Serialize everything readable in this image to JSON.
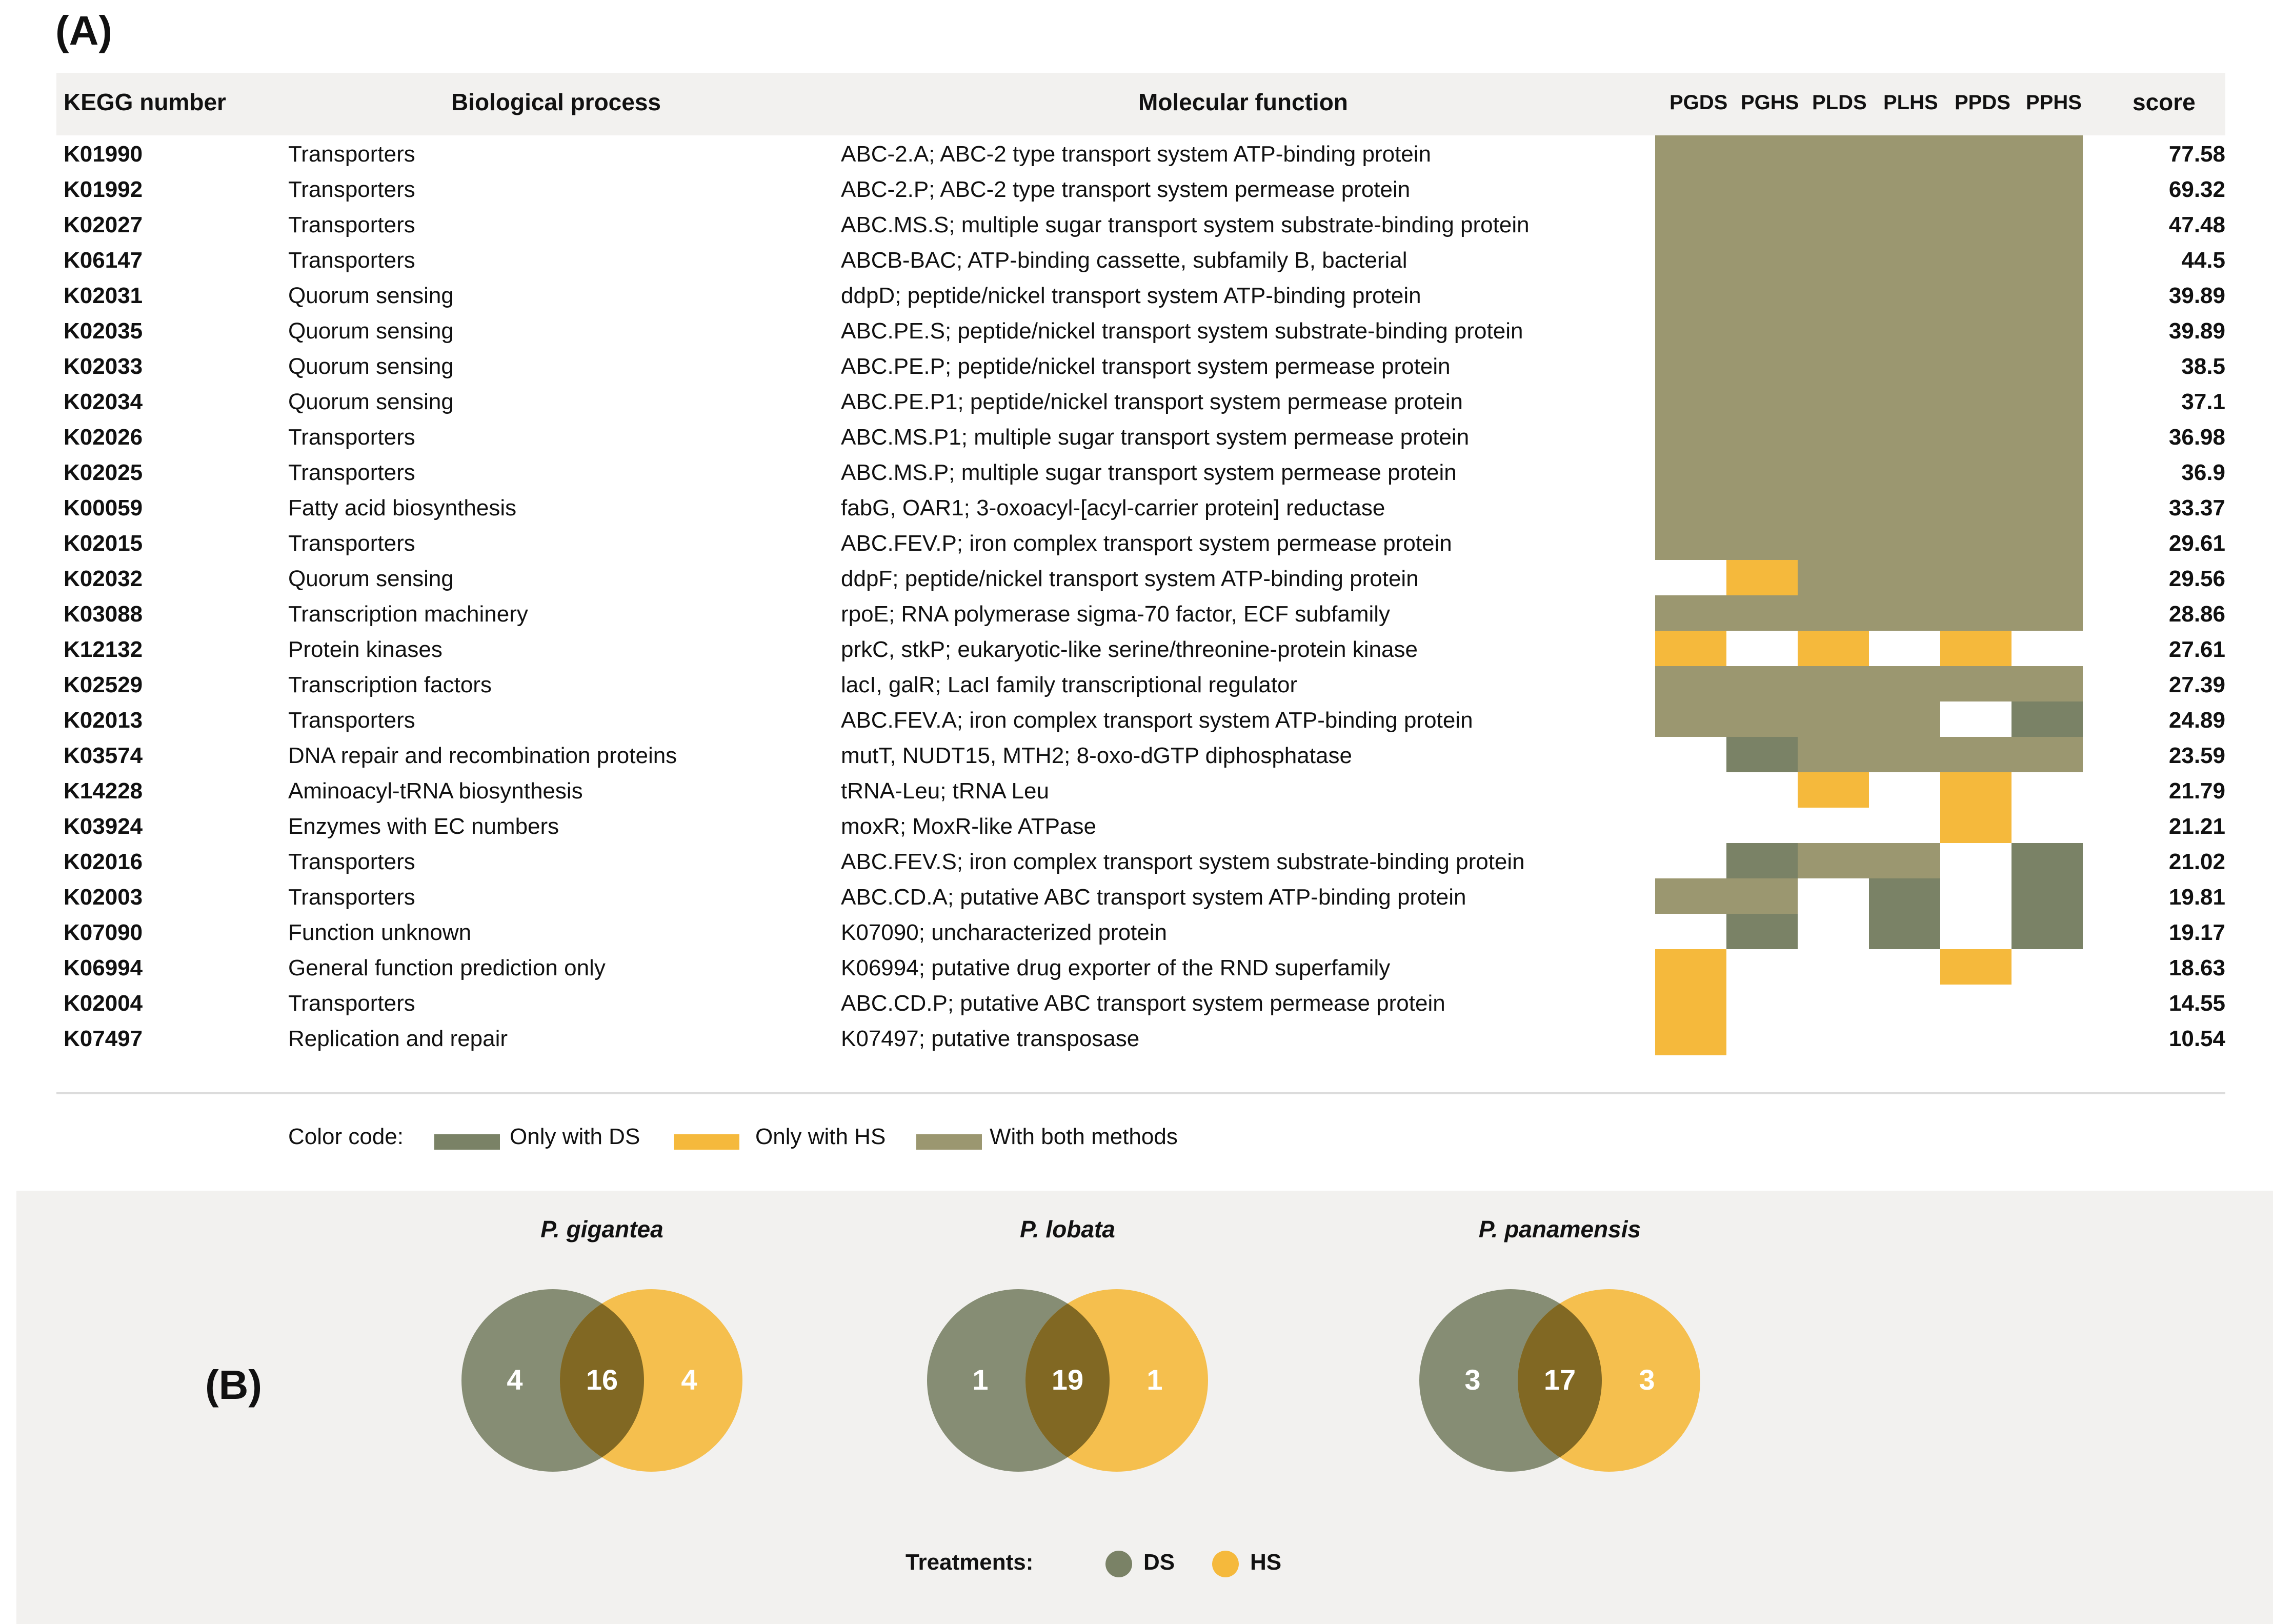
{
  "panel_labels": {
    "a": "(A)",
    "b": "(B)"
  },
  "colors": {
    "only_ds": "#7a8266",
    "only_hs": "#f5b93c",
    "both": "#9b9770",
    "none": "#ffffff"
  },
  "table": {
    "headers": {
      "kegg": "KEGG number",
      "bio": "Biological process",
      "mol": "Molecular function",
      "samples": [
        "PGDS",
        "PGHS",
        "PLDS",
        "PLHS",
        "PPDS",
        "PPHS"
      ],
      "score": "score"
    },
    "rows": [
      {
        "kegg": "K01990",
        "bio": "Transporters",
        "mol": "ABC-2.A; ABC-2 type transport system ATP-binding protein",
        "score": "77.58",
        "cells": [
          "both",
          "both",
          "both",
          "both",
          "both",
          "both"
        ]
      },
      {
        "kegg": "K01992",
        "bio": "Transporters",
        "mol": "ABC-2.P; ABC-2 type transport system permease protein",
        "score": "69.32",
        "cells": [
          "both",
          "both",
          "both",
          "both",
          "both",
          "both"
        ]
      },
      {
        "kegg": "K02027",
        "bio": "Transporters",
        "mol": "ABC.MS.S; multiple sugar transport system substrate-binding protein",
        "score": "47.48",
        "cells": [
          "both",
          "both",
          "both",
          "both",
          "both",
          "both"
        ]
      },
      {
        "kegg": "K06147",
        "bio": "Transporters",
        "mol": "ABCB-BAC; ATP-binding cassette, subfamily B, bacterial",
        "score": "44.5",
        "cells": [
          "both",
          "both",
          "both",
          "both",
          "both",
          "both"
        ]
      },
      {
        "kegg": "K02031",
        "bio": "Quorum sensing",
        "mol": "ddpD; peptide/nickel transport system ATP-binding protein",
        "score": "39.89",
        "cells": [
          "both",
          "both",
          "both",
          "both",
          "both",
          "both"
        ]
      },
      {
        "kegg": "K02035",
        "bio": "Quorum sensing",
        "mol": "ABC.PE.S; peptide/nickel transport system substrate-binding protein",
        "score": "39.89",
        "cells": [
          "both",
          "both",
          "both",
          "both",
          "both",
          "both"
        ]
      },
      {
        "kegg": "K02033",
        "bio": "Quorum sensing",
        "mol": "ABC.PE.P; peptide/nickel transport system permease protein",
        "score": "38.5",
        "cells": [
          "both",
          "both",
          "both",
          "both",
          "both",
          "both"
        ]
      },
      {
        "kegg": "K02034",
        "bio": "Quorum sensing",
        "mol": "ABC.PE.P1; peptide/nickel transport system permease protein",
        "score": "37.1",
        "cells": [
          "both",
          "both",
          "both",
          "both",
          "both",
          "both"
        ]
      },
      {
        "kegg": "K02026",
        "bio": "Transporters",
        "mol": "ABC.MS.P1; multiple sugar transport system permease protein",
        "score": "36.98",
        "cells": [
          "both",
          "both",
          "both",
          "both",
          "both",
          "both"
        ]
      },
      {
        "kegg": "K02025",
        "bio": "Transporters",
        "mol": "ABC.MS.P; multiple sugar transport system permease protein",
        "score": "36.9",
        "cells": [
          "both",
          "both",
          "both",
          "both",
          "both",
          "both"
        ]
      },
      {
        "kegg": "K00059",
        "bio": "Fatty acid biosynthesis",
        "mol": "fabG, OAR1; 3-oxoacyl-[acyl-carrier protein] reductase",
        "score": "33.37",
        "cells": [
          "both",
          "both",
          "both",
          "both",
          "both",
          "both"
        ]
      },
      {
        "kegg": "K02015",
        "bio": "Transporters",
        "mol": "ABC.FEV.P; iron complex transport system permease protein",
        "score": "29.61",
        "cells": [
          "both",
          "both",
          "both",
          "both",
          "both",
          "both"
        ]
      },
      {
        "kegg": "K02032",
        "bio": "Quorum sensing",
        "mol": "ddpF; peptide/nickel transport system ATP-binding protein",
        "score": "29.56",
        "cells": [
          "none",
          "hs",
          "both",
          "both",
          "both",
          "both"
        ]
      },
      {
        "kegg": "K03088",
        "bio": "Transcription machinery",
        "mol": "rpoE; RNA polymerase sigma-70 factor, ECF subfamily",
        "score": "28.86",
        "cells": [
          "both",
          "both",
          "both",
          "both",
          "both",
          "both"
        ]
      },
      {
        "kegg": "K12132",
        "bio": "Protein kinases",
        "mol": "prkC, stkP; eukaryotic-like serine/threonine-protein kinase",
        "score": "27.61",
        "cells": [
          "hs",
          "none",
          "hs",
          "none",
          "hs",
          "none"
        ]
      },
      {
        "kegg": "K02529",
        "bio": "Transcription factors",
        "mol": "lacI, galR; LacI family transcriptional regulator",
        "score": "27.39",
        "cells": [
          "both",
          "both",
          "both",
          "both",
          "both",
          "both"
        ]
      },
      {
        "kegg": "K02013",
        "bio": "Transporters",
        "mol": "ABC.FEV.A; iron complex transport system ATP-binding protein",
        "score": "24.89",
        "cells": [
          "both",
          "both",
          "both",
          "both",
          "none",
          "ds"
        ]
      },
      {
        "kegg": "K03574",
        "bio": "DNA repair and recombination proteins",
        "mol": "mutT, NUDT15, MTH2; 8-oxo-dGTP diphosphatase",
        "score": "23.59",
        "cells": [
          "none",
          "ds",
          "both",
          "both",
          "both",
          "both"
        ]
      },
      {
        "kegg": "K14228",
        "bio": "Aminoacyl-tRNA biosynthesis",
        "mol": "tRNA-Leu; tRNA Leu",
        "score": "21.79",
        "cells": [
          "none",
          "none",
          "hs",
          "none",
          "hs",
          "none"
        ]
      },
      {
        "kegg": "K03924",
        "bio": "Enzymes with EC numbers",
        "mol": "moxR; MoxR-like ATPase",
        "score": "21.21",
        "cells": [
          "none",
          "none",
          "none",
          "none",
          "hs",
          "none"
        ]
      },
      {
        "kegg": "K02016",
        "bio": "Transporters",
        "mol": "ABC.FEV.S; iron complex transport system substrate-binding protein",
        "score": "21.02",
        "cells": [
          "none",
          "ds",
          "both",
          "both",
          "none",
          "ds"
        ]
      },
      {
        "kegg": "K02003",
        "bio": "Transporters",
        "mol": "ABC.CD.A; putative ABC transport system ATP-binding protein",
        "score": "19.81",
        "cells": [
          "both",
          "both",
          "none",
          "ds",
          "none",
          "ds"
        ]
      },
      {
        "kegg": "K07090",
        "bio": "Function unknown",
        "mol": "K07090; uncharacterized protein",
        "score": "19.17",
        "cells": [
          "none",
          "ds",
          "none",
          "ds",
          "none",
          "ds"
        ]
      },
      {
        "kegg": "K06994",
        "bio": "General function prediction only",
        "mol": "K06994; putative drug exporter of the RND superfamily",
        "score": "18.63",
        "cells": [
          "hs",
          "none",
          "none",
          "none",
          "hs",
          "none"
        ]
      },
      {
        "kegg": "K02004",
        "bio": "Transporters",
        "mol": "ABC.CD.P; putative ABC transport system permease protein",
        "score": "14.55",
        "cells": [
          "hs",
          "none",
          "none",
          "none",
          "none",
          "none"
        ]
      },
      {
        "kegg": "K07497",
        "bio": "Replication and repair",
        "mol": "K07497; putative transposase",
        "score": "10.54",
        "cells": [
          "hs",
          "none",
          "none",
          "none",
          "none",
          "none"
        ]
      }
    ]
  },
  "legend": {
    "title": "Color code:",
    "items": [
      {
        "label": "Only with DS",
        "key": "only_ds"
      },
      {
        "label": "Only with HS",
        "key": "only_hs"
      },
      {
        "label": "With both methods",
        "key": "both"
      }
    ]
  },
  "venns": [
    {
      "title": "P. gigantea",
      "left": "4",
      "center": "16",
      "right": "4"
    },
    {
      "title": "P. lobata",
      "left": "1",
      "center": "19",
      "right": "1"
    },
    {
      "title": "P. panamensis",
      "left": "3",
      "center": "17",
      "right": "3"
    }
  ],
  "treatments": {
    "title": "Treatments:",
    "ds": "DS",
    "hs": "HS"
  }
}
